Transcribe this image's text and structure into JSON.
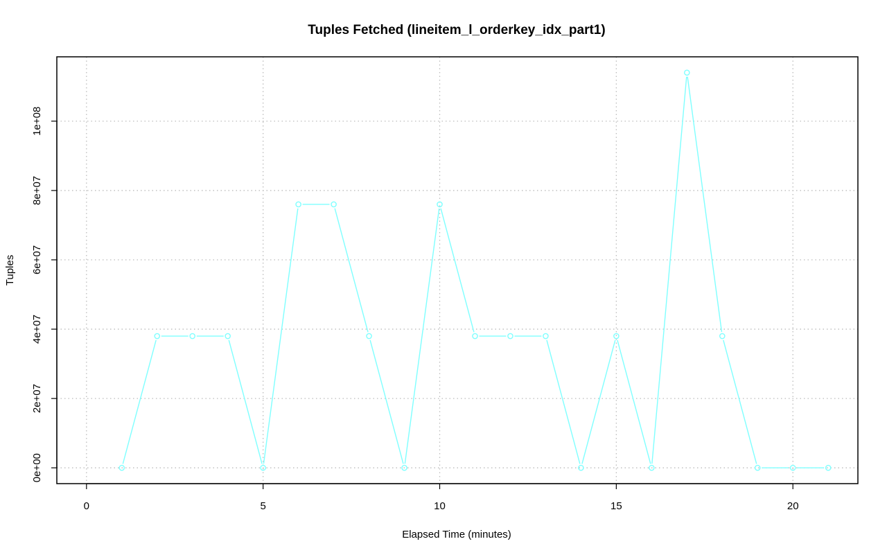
{
  "chart_data": {
    "type": "line",
    "title": "Tuples Fetched (lineitem_l_orderkey_idx_part1)",
    "xlabel": "Elapsed Time (minutes)",
    "ylabel": "Tuples",
    "xlim": [
      -0.84,
      21.84
    ],
    "ylim": [
      -4560000,
      118560000
    ],
    "x_ticks": [
      0,
      5,
      10,
      15,
      20
    ],
    "x_tick_labels": [
      "0",
      "5",
      "10",
      "15",
      "20"
    ],
    "y_ticks": [
      0,
      20000000,
      40000000,
      60000000,
      80000000,
      100000000
    ],
    "y_tick_labels": [
      "0e+00",
      "2e+07",
      "4e+07",
      "6e+07",
      "8e+07",
      "1e+08"
    ],
    "grid": true,
    "series": [
      {
        "color": "#7fffff",
        "x": [
          1,
          2,
          3,
          4,
          5,
          6,
          7,
          8,
          9,
          10,
          11,
          12,
          13,
          14,
          15,
          16,
          17,
          18,
          19,
          20,
          21
        ],
        "y": [
          0,
          38000000,
          38000000,
          38000000,
          0,
          76000000,
          76000000,
          38000000,
          0,
          76000000,
          38000000,
          38000000,
          38000000,
          0,
          38000000,
          0,
          114000000,
          38000000,
          0,
          0,
          0
        ]
      }
    ]
  }
}
